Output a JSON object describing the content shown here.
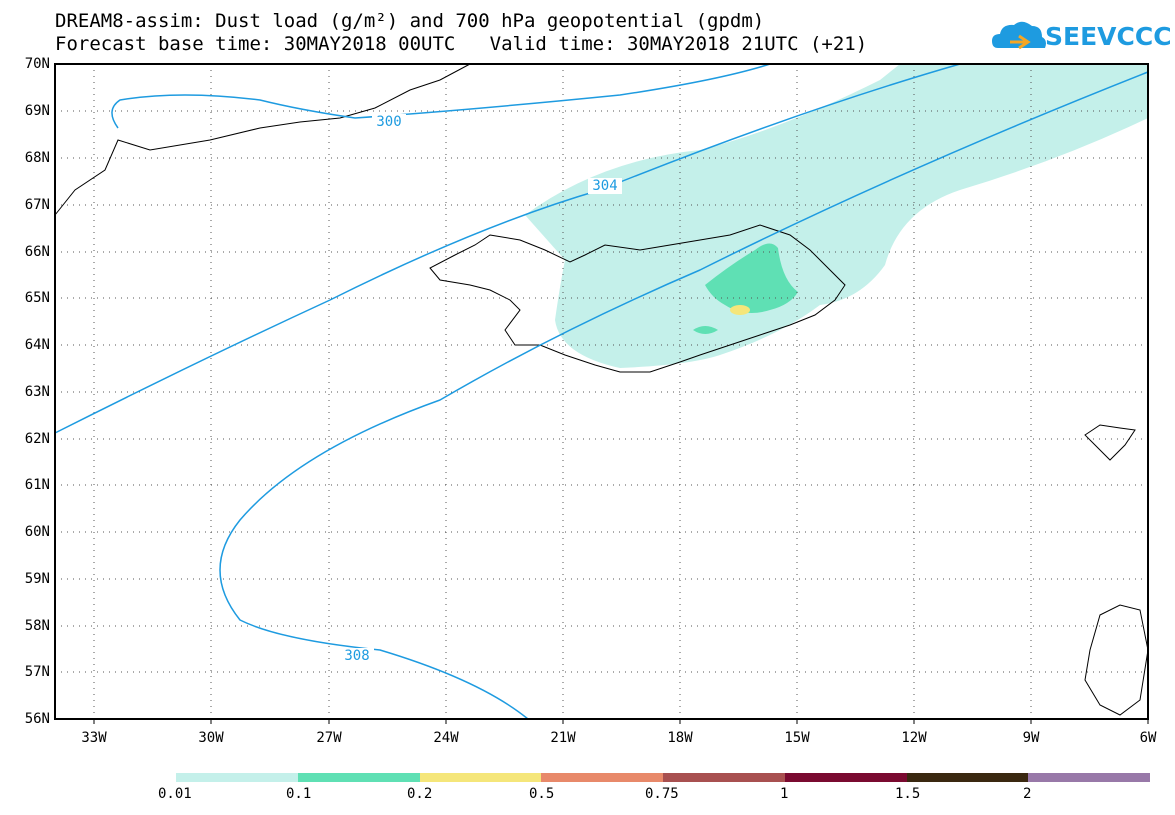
{
  "title": {
    "line1": "DREAM8-assim: Dust load (g/m²) and 700 hPa geopotential (gpdm)",
    "line2": "Forecast base time: 30MAY2018 00UTC   Valid time: 30MAY2018 21UTC (+21)"
  },
  "logo": {
    "text": "SEEVCCC",
    "icon": "cloud-icon",
    "color": "#1e9be0"
  },
  "map": {
    "lat_labels": [
      "70N",
      "69N",
      "68N",
      "67N",
      "66N",
      "65N",
      "64N",
      "63N",
      "62N",
      "61N",
      "60N",
      "59N",
      "58N",
      "57N",
      "56N"
    ],
    "lon_labels": [
      "33W",
      "30W",
      "27W",
      "24W",
      "21W",
      "18W",
      "15W",
      "12W",
      "9W",
      "6W"
    ],
    "contour_labels": [
      "300",
      "304",
      "308"
    ],
    "contour_color": "#1e9be0"
  },
  "colorbar": {
    "labels": [
      "0.01",
      "0.1",
      "0.2",
      "0.5",
      "0.75",
      "1",
      "1.5",
      "2"
    ],
    "colors": [
      "#c4f0ea",
      "#5fe0b4",
      "#f5e67a",
      "#e8896a",
      "#a85050",
      "#7a0a30",
      "#3a2810",
      "#9878a8"
    ]
  }
}
